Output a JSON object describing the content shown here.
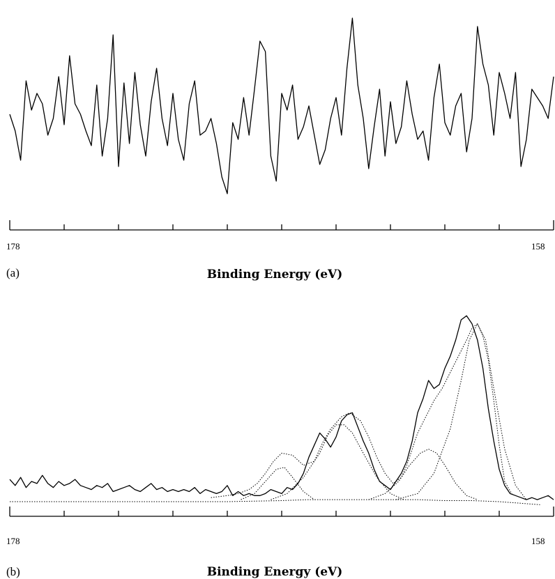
{
  "chart_data": [
    {
      "type": "line",
      "panel_label": "(a)",
      "xlabel": "Binding Energy (eV)",
      "xlim": [
        178,
        158
      ],
      "x_tick_labels": [
        {
          "value": 178,
          "label": "178"
        },
        {
          "value": 158,
          "label": "158"
        }
      ],
      "x_ticks": [
        178,
        176,
        174,
        172,
        170,
        168,
        166,
        164,
        162,
        160,
        158
      ],
      "ylim": [
        0,
        100
      ],
      "series": [
        {
          "style": "solid",
          "x": [
            178.0,
            177.8,
            177.6,
            177.4,
            177.2,
            177.0,
            176.8,
            176.6,
            176.4,
            176.2,
            176.0,
            175.8,
            175.6,
            175.4,
            175.2,
            175.0,
            174.8,
            174.6,
            174.4,
            174.2,
            174.0,
            173.8,
            173.6,
            173.4,
            173.2,
            173.0,
            172.8,
            172.6,
            172.4,
            172.2,
            172.0,
            171.8,
            171.6,
            171.4,
            171.2,
            171.0,
            170.8,
            170.6,
            170.4,
            170.2,
            170.0,
            169.8,
            169.6,
            169.4,
            169.2,
            169.0,
            168.8,
            168.6,
            168.4,
            168.2,
            168.0,
            167.8,
            167.6,
            167.4,
            167.2,
            167.0,
            166.8,
            166.6,
            166.4,
            166.2,
            166.0,
            165.8,
            165.6,
            165.4,
            165.2,
            165.0,
            164.8,
            164.6,
            164.4,
            164.2,
            164.0,
            163.8,
            163.6,
            163.4,
            163.2,
            163.0,
            162.8,
            162.6,
            162.4,
            162.2,
            162.0,
            161.8,
            161.6,
            161.4,
            161.2,
            161.0,
            160.8,
            160.6,
            160.4,
            160.2,
            160.0,
            159.8,
            159.6,
            159.4,
            159.2,
            159.0,
            158.8,
            158.6,
            158.4,
            158.2,
            158.0
          ],
          "y": [
            50,
            42,
            28,
            66,
            52,
            60,
            55,
            40,
            48,
            68,
            45,
            78,
            55,
            50,
            42,
            35,
            64,
            30,
            48,
            88,
            25,
            65,
            36,
            70,
            45,
            30,
            56,
            72,
            48,
            35,
            60,
            38,
            28,
            55,
            66,
            40,
            42,
            48,
            36,
            20,
            12,
            46,
            38,
            58,
            40,
            62,
            85,
            80,
            30,
            18,
            60,
            52,
            64,
            38,
            44,
            54,
            40,
            26,
            33,
            48,
            58,
            40,
            72,
            96,
            64,
            48,
            24,
            44,
            62,
            30,
            56,
            36,
            44,
            66,
            50,
            38,
            42,
            28,
            58,
            74,
            46,
            40,
            54,
            60,
            32,
            48,
            92,
            74,
            64,
            40,
            70,
            60,
            48,
            70,
            25,
            38,
            62,
            58,
            54,
            48,
            68
          ]
        }
      ]
    },
    {
      "type": "line",
      "panel_label": "(b)",
      "xlabel": "Binding Energy (eV)",
      "xlim": [
        178,
        158
      ],
      "x_tick_labels": [
        {
          "value": 178,
          "label": "178"
        },
        {
          "value": 158,
          "label": "158"
        }
      ],
      "x_ticks": [
        178,
        176,
        174,
        172,
        170,
        168,
        166,
        164,
        162,
        160,
        158
      ],
      "ylim": [
        0,
        100
      ],
      "series": [
        {
          "style": "solid",
          "x": [
            178.0,
            177.8,
            177.6,
            177.4,
            177.2,
            177.0,
            176.8,
            176.6,
            176.4,
            176.2,
            176.0,
            175.8,
            175.6,
            175.4,
            175.2,
            175.0,
            174.8,
            174.6,
            174.4,
            174.2,
            174.0,
            173.8,
            173.6,
            173.4,
            173.2,
            173.0,
            172.8,
            172.6,
            172.4,
            172.2,
            172.0,
            171.8,
            171.6,
            171.4,
            171.2,
            171.0,
            170.8,
            170.6,
            170.4,
            170.2,
            170.0,
            169.8,
            169.6,
            169.4,
            169.2,
            169.0,
            168.8,
            168.6,
            168.4,
            168.2,
            168.0,
            167.8,
            167.6,
            167.4,
            167.2,
            167.0,
            166.8,
            166.6,
            166.4,
            166.2,
            166.0,
            165.8,
            165.6,
            165.4,
            165.2,
            165.0,
            164.8,
            164.6,
            164.4,
            164.2,
            164.0,
            163.8,
            163.6,
            163.4,
            163.2,
            163.0,
            162.8,
            162.6,
            162.4,
            162.2,
            162.0,
            161.8,
            161.6,
            161.4,
            161.2,
            161.0,
            160.8,
            160.6,
            160.4,
            160.2,
            160.0,
            159.8,
            159.6,
            159.4,
            159.2,
            159.0,
            158.8,
            158.6,
            158.4,
            158.2,
            158.0
          ],
          "y": [
            11,
            8,
            12,
            7,
            10,
            9,
            13,
            9,
            7,
            10,
            8,
            9,
            11,
            8,
            7,
            6,
            8,
            7,
            9,
            5,
            6,
            7,
            8,
            6,
            5,
            7,
            9,
            6,
            7,
            5,
            6,
            5,
            6,
            5,
            7,
            4,
            6,
            5,
            4,
            5,
            8,
            3,
            5,
            3,
            4,
            3,
            3,
            4,
            6,
            5,
            4,
            7,
            6,
            9,
            14,
            22,
            28,
            34,
            31,
            27,
            32,
            40,
            43,
            44,
            37,
            30,
            24,
            16,
            10,
            8,
            6,
            10,
            14,
            20,
            30,
            44,
            51,
            60,
            56,
            58,
            66,
            72,
            80,
            90,
            92,
            88,
            80,
            66,
            46,
            30,
            16,
            8,
            4,
            3,
            2,
            1,
            2,
            1,
            2,
            3,
            1
          ]
        },
        {
          "name": "",
          "style": "dotted",
          "x": [
            178,
            174,
            172,
            170,
            168,
            167,
            166,
            165,
            164,
            163,
            162,
            161,
            160,
            159,
            158.5
          ],
          "y": [
            0,
            0,
            0,
            0,
            0.5,
            1,
            1,
            1,
            1,
            1,
            0.5,
            0.5,
            0,
            -1,
            -1.5
          ]
        },
        {
          "style": "dotted",
          "x": [
            170.6,
            170.0,
            169.6,
            169.2,
            168.9,
            168.6,
            168.3,
            168.0,
            167.6,
            167.2,
            166.8,
            166.5,
            166.2,
            165.8,
            165.5,
            165.1,
            164.8,
            164.5,
            164.2,
            163.9,
            163.6,
            163.4,
            163.2,
            163.0,
            162.7,
            162.4,
            162.1,
            161.8,
            161.5,
            161.2,
            161.0,
            160.8,
            160.6,
            160.4,
            160.2,
            160.0,
            159.8,
            159.5
          ],
          "y": [
            2,
            3,
            4,
            6,
            9,
            14,
            20,
            24,
            23,
            18,
            20,
            29,
            36,
            42,
            44,
            40,
            32,
            22,
            14,
            9,
            12,
            18,
            26,
            34,
            42,
            50,
            56,
            64,
            72,
            80,
            86,
            88,
            82,
            70,
            50,
            28,
            10,
            3
          ]
        },
        {
          "style": "dotted",
          "x": [
            169.5,
            169.0,
            168.6,
            168.2,
            167.9,
            167.6,
            167.2,
            166.8
          ],
          "y": [
            1,
            4,
            10,
            16,
            17,
            12,
            5,
            1
          ]
        },
        {
          "style": "dotted",
          "x": [
            168.4,
            167.8,
            167.2,
            166.6,
            166.3,
            166.0,
            165.7,
            165.4,
            165.0,
            164.5,
            164.0,
            163.5
          ],
          "y": [
            1,
            4,
            12,
            24,
            33,
            38,
            38,
            34,
            24,
            12,
            4,
            1
          ]
        },
        {
          "style": "dotted",
          "x": [
            164.8,
            164.2,
            163.7,
            163.3,
            162.9,
            162.6,
            162.3,
            162.0,
            161.6,
            161.2,
            160.8
          ],
          "y": [
            1,
            4,
            10,
            18,
            24,
            26,
            24,
            18,
            9,
            3,
            1
          ]
        },
        {
          "style": "dotted",
          "x": [
            163.8,
            163.0,
            162.4,
            161.8,
            161.4,
            161.1,
            160.8,
            160.5,
            160.2,
            159.8,
            159.4,
            159.0
          ],
          "y": [
            1,
            4,
            14,
            36,
            60,
            80,
            88,
            80,
            56,
            26,
            8,
            1
          ]
        }
      ]
    }
  ]
}
